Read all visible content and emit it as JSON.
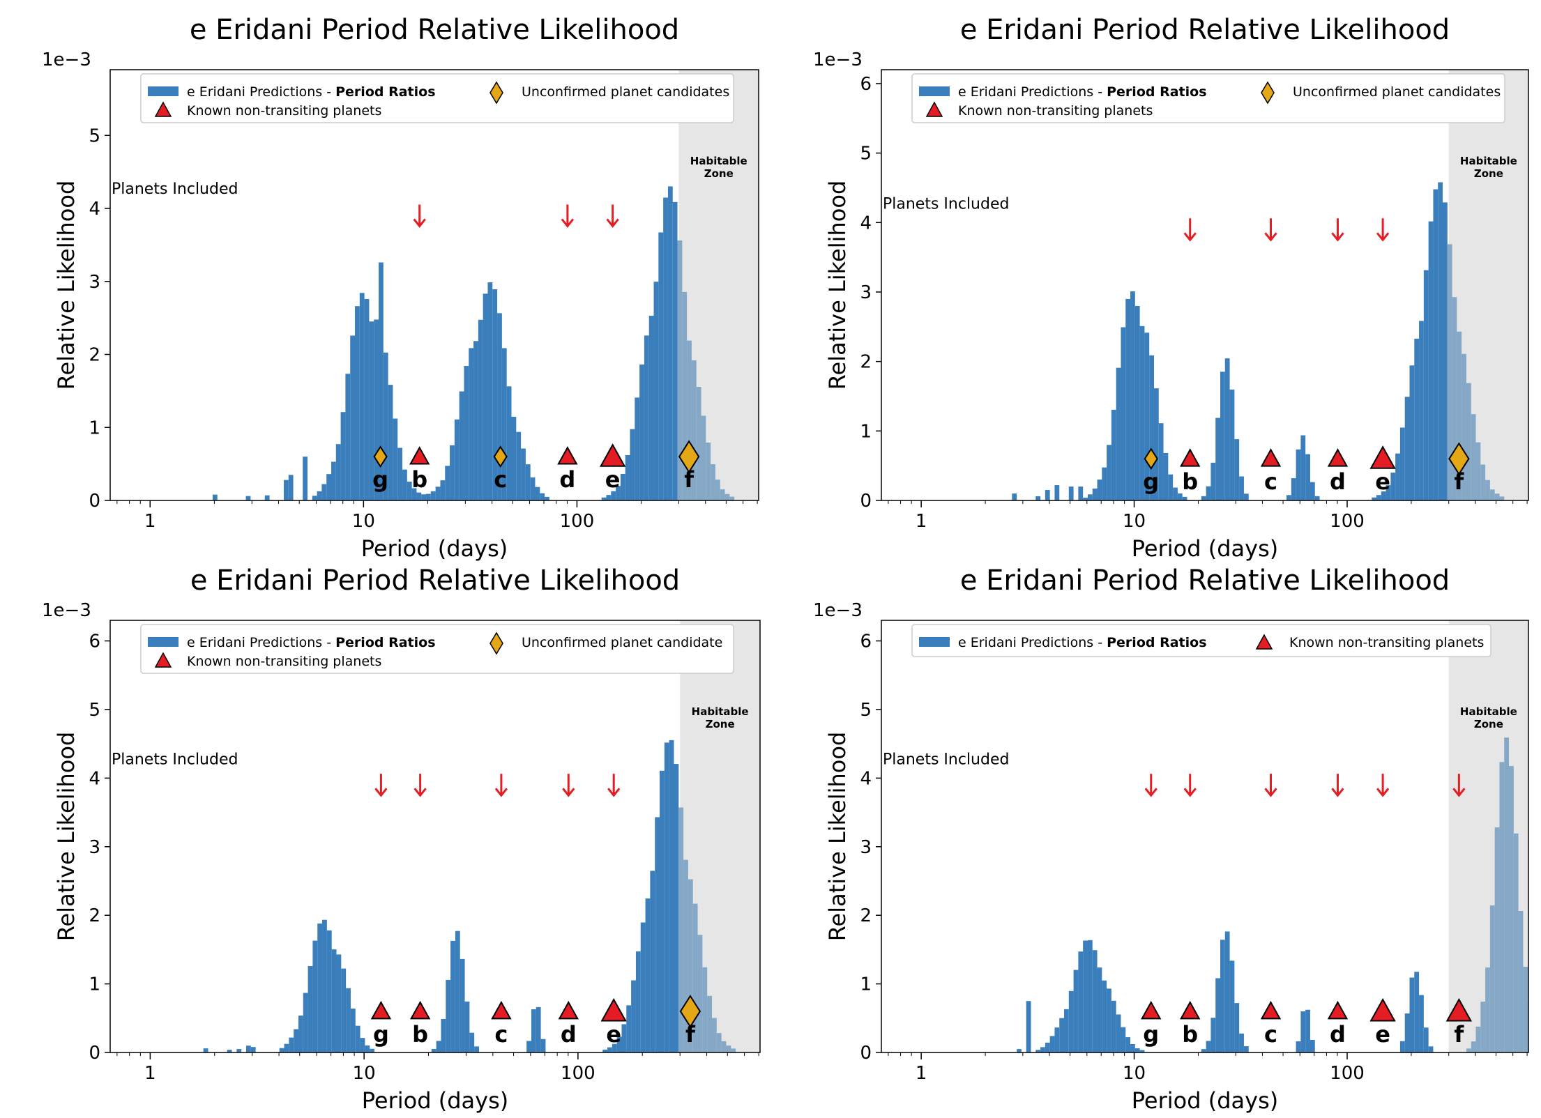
{
  "chart_data": [
    {
      "type": "bar",
      "title": "e Eridani Period Relative Likelihood",
      "xlabel": "Period (days)",
      "ylabel": "Relative Likelihood",
      "offset_text": "1e−3",
      "xscale": "log",
      "xlim": [
        0.65,
        710
      ],
      "ylim": [
        0,
        5.9
      ],
      "yticks": [
        0,
        1,
        2,
        3,
        4,
        5
      ],
      "xticks": [
        {
          "value": 1,
          "label": "1"
        },
        {
          "value": 10,
          "label": "10"
        },
        {
          "value": 100,
          "label": "100"
        }
      ],
      "legend": {
        "placement": "top",
        "hist": {
          "prefix": "e Eridani Predictions - ",
          "bold": "Period Ratios"
        },
        "candidate": "Unconfirmed planet candidates",
        "known": "Known non-transiting planets",
        "order": [
          "hist",
          "candidate",
          "known"
        ]
      },
      "habitable_zone": {
        "label_line1": "Habitable",
        "label_line2": "Zone",
        "start": 300,
        "end": 710
      },
      "planets_included_label": "Planets Included",
      "hist": {
        "data_end": 710,
        "peaks": [
          {
            "center": 10.5,
            "sigma": 0.09,
            "amp": 2.8
          },
          {
            "center": 38,
            "sigma": 0.1,
            "amp": 2.75
          },
          {
            "center": 270,
            "sigma": 0.1,
            "amp": 3.85
          }
        ],
        "scatter": [
          {
            "x": 2,
            "h": 0.08
          },
          {
            "x": 2.9,
            "h": 0.06
          },
          {
            "x": 3.6,
            "h": 0.07
          },
          {
            "x": 4.3,
            "h": 0.28
          },
          {
            "x": 4.6,
            "h": 0.35
          },
          {
            "x": 5.3,
            "h": 0.6
          }
        ],
        "spikes": [
          {
            "x": 12.3,
            "h": 3.26
          },
          {
            "x": 9.3,
            "h": 2.1
          }
        ]
      },
      "planets": [
        {
          "label": "g",
          "period": 12,
          "kind": "candidate"
        },
        {
          "label": "b",
          "period": 18.3,
          "kind": "known"
        },
        {
          "label": "c",
          "period": 43.8,
          "kind": "candidate"
        },
        {
          "label": "d",
          "period": 90.3,
          "kind": "known"
        },
        {
          "label": "e",
          "period": 147,
          "kind": "known"
        },
        {
          "label": "f",
          "period": 335,
          "kind": "candidate"
        }
      ],
      "arrows": [
        {
          "period": 18.3,
          "y": 3.9
        },
        {
          "period": 90.3,
          "y": 3.9
        },
        {
          "period": 147,
          "y": 3.9
        }
      ]
    },
    {
      "type": "bar",
      "title": "e Eridani Period Relative Likelihood",
      "xlabel": "Period (days)",
      "ylabel": "Relative Likelihood",
      "offset_text": "1e−3",
      "xscale": "log",
      "xlim": [
        0.65,
        710
      ],
      "ylim": [
        0,
        6.2
      ],
      "yticks": [
        0,
        1,
        2,
        3,
        4,
        5,
        6
      ],
      "xticks": [
        {
          "value": 1,
          "label": "1"
        },
        {
          "value": 10,
          "label": "10"
        },
        {
          "value": 100,
          "label": "100"
        }
      ],
      "legend": {
        "placement": "top",
        "hist": {
          "prefix": "e Eridani Predictions - ",
          "bold": "Period Ratios"
        },
        "candidate": "Unconfirmed planet candidates",
        "known": "Known non-transiting planets",
        "order": [
          "hist",
          "candidate",
          "known"
        ]
      },
      "habitable_zone": {
        "label_line1": "Habitable",
        "label_line2": "Zone",
        "start": 300,
        "end": 710
      },
      "planets_included_label": "Planets Included",
      "hist": {
        "data_end": 710,
        "peaks": [
          {
            "center": 10.2,
            "sigma": 0.08,
            "amp": 2.95
          },
          {
            "center": 27,
            "sigma": 0.04,
            "amp": 1.85
          },
          {
            "center": 62,
            "sigma": 0.03,
            "amp": 0.85
          },
          {
            "center": 270,
            "sigma": 0.1,
            "amp": 4.1
          }
        ],
        "scatter": [
          {
            "x": 2.8,
            "h": 0.1
          },
          {
            "x": 3.6,
            "h": 0.06
          },
          {
            "x": 4.0,
            "h": 0.15
          },
          {
            "x": 4.4,
            "h": 0.22
          },
          {
            "x": 5.0,
            "h": 0.2
          },
          {
            "x": 5.5,
            "h": 0.2
          }
        ],
        "spikes": []
      },
      "planets": [
        {
          "label": "g",
          "period": 12,
          "kind": "candidate"
        },
        {
          "label": "b",
          "period": 18.3,
          "kind": "known"
        },
        {
          "label": "c",
          "period": 43.8,
          "kind": "known"
        },
        {
          "label": "d",
          "period": 90.3,
          "kind": "known"
        },
        {
          "label": "e",
          "period": 147,
          "kind": "known"
        },
        {
          "label": "f",
          "period": 335,
          "kind": "candidate"
        }
      ],
      "arrows": [
        {
          "period": 18.3,
          "y": 3.9
        },
        {
          "period": 43.8,
          "y": 3.9
        },
        {
          "period": 90.3,
          "y": 3.9
        },
        {
          "period": 147,
          "y": 3.9
        }
      ]
    },
    {
      "type": "bar",
      "title": "e Eridani Period Relative Likelihood",
      "xlabel": "Period (days)",
      "ylabel": "Relative Likelihood",
      "offset_text": "1e−3",
      "xscale": "log",
      "xlim": [
        0.65,
        710
      ],
      "ylim": [
        0,
        6.3
      ],
      "yticks": [
        0,
        1,
        2,
        3,
        4,
        5,
        6
      ],
      "xticks": [
        {
          "value": 1,
          "label": "1"
        },
        {
          "value": 10,
          "label": "10"
        },
        {
          "value": 100,
          "label": "100"
        }
      ],
      "legend": {
        "placement": "top",
        "hist": {
          "prefix": "e Eridani Predictions - ",
          "bold": "Period Ratios"
        },
        "candidate": "Unconfirmed planet candidate",
        "known": "Known non-transiting planets",
        "order": [
          "hist",
          "candidate",
          "known"
        ]
      },
      "habitable_zone": {
        "label_line1": "Habitable",
        "label_line2": "Zone",
        "start": 300,
        "end": 710
      },
      "planets_included_label": "Planets Included",
      "hist": {
        "data_end": 710,
        "peaks": [
          {
            "center": 6.7,
            "sigma": 0.08,
            "amp": 1.85
          },
          {
            "center": 27,
            "sigma": 0.04,
            "amp": 1.6
          },
          {
            "center": 64,
            "sigma": 0.02,
            "amp": 0.72
          },
          {
            "center": 270,
            "sigma": 0.1,
            "amp": 4.1
          }
        ],
        "scatter": [
          {
            "x": 1.8,
            "h": 0.06
          },
          {
            "x": 2.3,
            "h": 0.04
          },
          {
            "x": 2.6,
            "h": 0.05
          },
          {
            "x": 2.9,
            "h": 0.1
          },
          {
            "x": 3.1,
            "h": 0.08
          }
        ],
        "spikes": []
      },
      "planets": [
        {
          "label": "g",
          "period": 12,
          "kind": "known"
        },
        {
          "label": "b",
          "period": 18.3,
          "kind": "known"
        },
        {
          "label": "c",
          "period": 43.8,
          "kind": "known"
        },
        {
          "label": "d",
          "period": 90.3,
          "kind": "known"
        },
        {
          "label": "e",
          "period": 147,
          "kind": "known"
        },
        {
          "label": "f",
          "period": 335,
          "kind": "candidate"
        }
      ],
      "arrows": [
        {
          "period": 12,
          "y": 3.9
        },
        {
          "period": 18.3,
          "y": 3.9
        },
        {
          "period": 43.8,
          "y": 3.9
        },
        {
          "period": 90.3,
          "y": 3.9
        },
        {
          "period": 147,
          "y": 3.9
        }
      ]
    },
    {
      "type": "bar",
      "title": "e Eridani Period Relative Likelihood",
      "xlabel": "Period (days)",
      "ylabel": "Relative Likelihood",
      "offset_text": "1e−3",
      "xscale": "log",
      "xlim": [
        0.65,
        710
      ],
      "ylim": [
        0,
        6.3
      ],
      "yticks": [
        0,
        1,
        2,
        3,
        4,
        5,
        6
      ],
      "xticks": [
        {
          "value": 1,
          "label": "1"
        },
        {
          "value": 10,
          "label": "10"
        },
        {
          "value": 100,
          "label": "100"
        }
      ],
      "legend": {
        "placement": "top",
        "hist": {
          "prefix": "e Eridani Predictions - ",
          "bold": "Period Ratios"
        },
        "known": "Known non-transiting planets",
        "order": [
          "hist",
          "known"
        ]
      },
      "habitable_zone": {
        "label_line1": "Habitable",
        "label_line2": "Zone",
        "start": 300,
        "end": 710
      },
      "planets_included_label": "Planets Included",
      "hist": {
        "data_end": 710,
        "peaks": [
          {
            "center": 6.2,
            "sigma": 0.09,
            "amp": 1.5
          },
          {
            "center": 27,
            "sigma": 0.04,
            "amp": 1.6
          },
          {
            "center": 64,
            "sigma": 0.02,
            "amp": 0.7
          },
          {
            "center": 210,
            "sigma": 0.03,
            "amp": 1.3
          },
          {
            "center": 560,
            "sigma": 0.06,
            "amp": 4.1
          }
        ],
        "scatter": [
          {
            "x": 2.9,
            "h": 0.05
          },
          {
            "x": 3.2,
            "h": 0.75
          }
        ],
        "spikes": []
      },
      "planets": [
        {
          "label": "g",
          "period": 12,
          "kind": "known"
        },
        {
          "label": "b",
          "period": 18.3,
          "kind": "known"
        },
        {
          "label": "c",
          "period": 43.8,
          "kind": "known"
        },
        {
          "label": "d",
          "period": 90.3,
          "kind": "known"
        },
        {
          "label": "e",
          "period": 147,
          "kind": "known"
        },
        {
          "label": "f",
          "period": 335,
          "kind": "known"
        }
      ],
      "arrows": [
        {
          "period": 12,
          "y": 3.9
        },
        {
          "period": 18.3,
          "y": 3.9
        },
        {
          "period": 43.8,
          "y": 3.9
        },
        {
          "period": 90.3,
          "y": 3.9
        },
        {
          "period": 147,
          "y": 3.9
        },
        {
          "period": 335,
          "y": 3.9
        }
      ]
    }
  ],
  "colors": {
    "bar": "#3a7ebc",
    "bar_hz": "#86a8c7",
    "hz_fill": "#e6e6e6",
    "known": "#e31d23",
    "candidate": "#e4a817",
    "arrow": "#e31d23",
    "text": "#000000"
  }
}
